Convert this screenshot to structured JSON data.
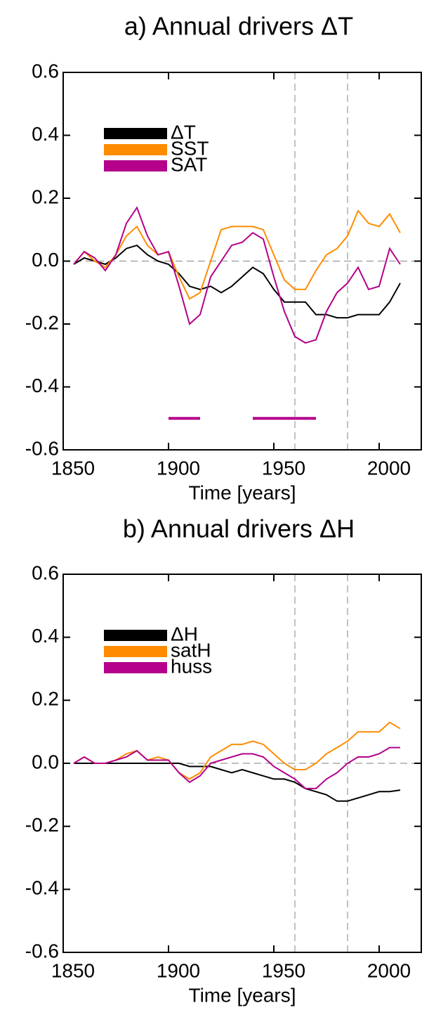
{
  "chart_data": [
    {
      "type": "line",
      "title": "a) Annual drivers ΔT",
      "x_label": "Time [years]",
      "x": [
        1855,
        1860,
        1865,
        1870,
        1875,
        1880,
        1885,
        1890,
        1895,
        1900,
        1905,
        1910,
        1915,
        1920,
        1925,
        1930,
        1935,
        1940,
        1945,
        1950,
        1955,
        1960,
        1965,
        1970,
        1975,
        1980,
        1985,
        1990,
        1995,
        2000,
        2005,
        2010
      ],
      "series": [
        {
          "name": "ΔT",
          "color": "#000000",
          "values": [
            -0.01,
            0.01,
            0.0,
            -0.01,
            0.01,
            0.04,
            0.05,
            0.02,
            0.0,
            -0.01,
            -0.04,
            -0.08,
            -0.09,
            -0.08,
            -0.1,
            -0.08,
            -0.05,
            -0.02,
            -0.04,
            -0.09,
            -0.13,
            -0.13,
            -0.13,
            -0.17,
            -0.17,
            -0.18,
            -0.18,
            -0.17,
            -0.17,
            -0.17,
            -0.13,
            -0.07
          ]
        },
        {
          "name": "SST",
          "color": "#ff8c00",
          "values": [
            -0.01,
            0.03,
            0.0,
            -0.02,
            0.02,
            0.08,
            0.11,
            0.05,
            0.02,
            0.03,
            -0.05,
            -0.12,
            -0.1,
            0.0,
            0.1,
            0.11,
            0.11,
            0.11,
            0.1,
            0.02,
            -0.06,
            -0.09,
            -0.09,
            -0.03,
            0.02,
            0.04,
            0.08,
            0.16,
            0.12,
            0.11,
            0.15,
            0.09
          ]
        },
        {
          "name": "SAT",
          "color": "#b4008a",
          "values": [
            -0.01,
            0.03,
            0.01,
            -0.03,
            0.02,
            0.12,
            0.17,
            0.08,
            0.02,
            0.03,
            -0.08,
            -0.2,
            -0.17,
            -0.05,
            0.0,
            0.05,
            0.06,
            0.09,
            0.07,
            -0.05,
            -0.16,
            -0.24,
            -0.26,
            -0.25,
            -0.16,
            -0.1,
            -0.07,
            -0.02,
            -0.09,
            -0.08,
            0.04,
            -0.01
          ]
        }
      ],
      "xlim": [
        1850,
        2020
      ],
      "xticks": [
        1850,
        1900,
        1950,
        2000
      ],
      "ylim": [
        -0.6,
        0.6
      ],
      "yticks": [
        -0.6,
        -0.4,
        -0.2,
        {
          "value": 0,
          "label": "0.0"
        },
        0.2,
        0.4,
        0.6
      ],
      "vlines": [
        1960,
        1985
      ],
      "hline": 0,
      "sig_bars": [
        {
          "x": [
            1900,
            1915
          ],
          "y": -0.5,
          "color": "#b4008a"
        },
        {
          "x": [
            1940,
            1970
          ],
          "y": -0.5,
          "color": "#b4008a"
        }
      ]
    },
    {
      "type": "line",
      "title": "b) Annual drivers ΔH",
      "x_label": "Time [years]",
      "x": [
        1855,
        1860,
        1865,
        1870,
        1875,
        1880,
        1885,
        1890,
        1895,
        1900,
        1905,
        1910,
        1915,
        1920,
        1925,
        1930,
        1935,
        1940,
        1945,
        1950,
        1955,
        1960,
        1965,
        1970,
        1975,
        1980,
        1985,
        1990,
        1995,
        2000,
        2005,
        2010
      ],
      "series": [
        {
          "name": "ΔH",
          "color": "#000000",
          "values": [
            0.0,
            0.0,
            0.0,
            0.0,
            0.0,
            0.0,
            0.0,
            0.0,
            0.0,
            0.0,
            0.0,
            -0.01,
            -0.01,
            -0.01,
            -0.02,
            -0.03,
            -0.02,
            -0.03,
            -0.04,
            -0.05,
            -0.05,
            -0.06,
            -0.08,
            -0.09,
            -0.1,
            -0.12,
            -0.12,
            -0.11,
            -0.1,
            -0.09,
            -0.09,
            -0.085
          ]
        },
        {
          "name": "satH",
          "color": "#ff8c00",
          "values": [
            0.0,
            0.02,
            0.0,
            0.0,
            0.01,
            0.03,
            0.04,
            0.01,
            0.02,
            0.01,
            -0.03,
            -0.05,
            -0.03,
            0.02,
            0.04,
            0.06,
            0.06,
            0.07,
            0.06,
            0.03,
            0.0,
            -0.02,
            -0.02,
            0.0,
            0.03,
            0.05,
            0.07,
            0.1,
            0.1,
            0.1,
            0.13,
            0.11
          ]
        },
        {
          "name": "huss",
          "color": "#b4008a",
          "values": [
            0.0,
            0.02,
            0.0,
            0.0,
            0.01,
            0.02,
            0.04,
            0.01,
            0.01,
            0.01,
            -0.03,
            -0.06,
            -0.04,
            0.0,
            0.01,
            0.02,
            0.03,
            0.03,
            0.02,
            -0.01,
            -0.03,
            -0.05,
            -0.08,
            -0.08,
            -0.05,
            -0.03,
            0.0,
            0.02,
            0.02,
            0.03,
            0.05,
            0.05
          ]
        }
      ],
      "xlim": [
        1850,
        2020
      ],
      "xticks": [
        1850,
        1900,
        1950,
        2000
      ],
      "ylim": [
        -0.6,
        0.6
      ],
      "yticks": [
        -0.6,
        -0.4,
        -0.2,
        {
          "value": 0,
          "label": "0.0"
        },
        0.2,
        0.4,
        0.6
      ],
      "vlines": [
        1960,
        1985
      ],
      "hline": 0
    }
  ]
}
